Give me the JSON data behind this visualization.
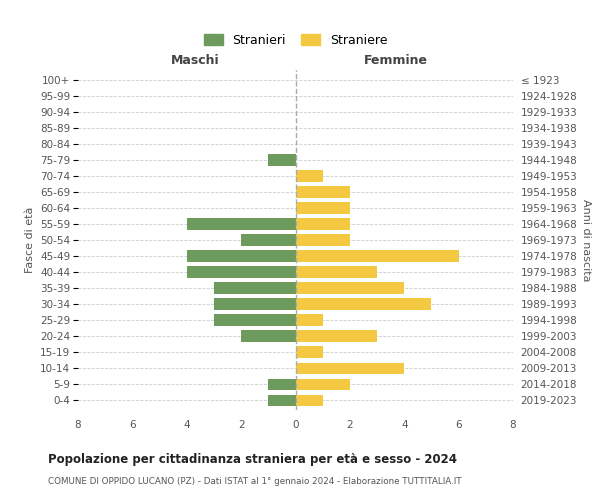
{
  "age_groups": [
    "100+",
    "95-99",
    "90-94",
    "85-89",
    "80-84",
    "75-79",
    "70-74",
    "65-69",
    "60-64",
    "55-59",
    "50-54",
    "45-49",
    "40-44",
    "35-39",
    "30-34",
    "25-29",
    "20-24",
    "15-19",
    "10-14",
    "5-9",
    "0-4"
  ],
  "birth_years": [
    "≤ 1923",
    "1924-1928",
    "1929-1933",
    "1934-1938",
    "1939-1943",
    "1944-1948",
    "1949-1953",
    "1954-1958",
    "1959-1963",
    "1964-1968",
    "1969-1973",
    "1974-1978",
    "1979-1983",
    "1984-1988",
    "1989-1993",
    "1994-1998",
    "1999-2003",
    "2004-2008",
    "2009-2013",
    "2014-2018",
    "2019-2023"
  ],
  "maschi": [
    0,
    0,
    0,
    0,
    0,
    1,
    0,
    0,
    0,
    4,
    2,
    4,
    4,
    3,
    3,
    3,
    2,
    0,
    0,
    1,
    1
  ],
  "femmine": [
    0,
    0,
    0,
    0,
    0,
    0,
    1,
    2,
    2,
    2,
    2,
    6,
    3,
    4,
    5,
    1,
    3,
    1,
    4,
    2,
    1
  ],
  "color_maschi": "#6d9b5e",
  "color_femmine": "#f5c842",
  "title_main": "Popolazione per cittadinanza straniera per età e sesso - 2024",
  "title_sub": "COMUNE DI OPPIDO LUCANO (PZ) - Dati ISTAT al 1° gennaio 2024 - Elaborazione TUTTITALIA.IT",
  "legend_maschi": "Stranieri",
  "legend_femmine": "Straniere",
  "xlabel_left": "Maschi",
  "xlabel_right": "Femmine",
  "ylabel_left": "Fasce di età",
  "ylabel_right": "Anni di nascita",
  "xlim": 8,
  "background_color": "#ffffff",
  "grid_color": "#cccccc"
}
